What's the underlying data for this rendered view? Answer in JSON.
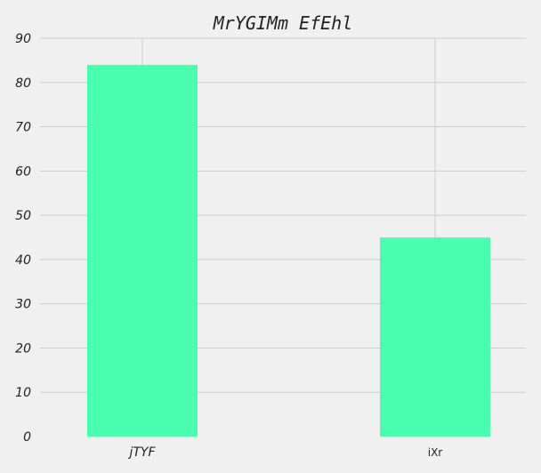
{
  "chart_data": {
    "type": "bar",
    "title": "MrYGIMm EfEhl",
    "xlabel": "",
    "ylabel": "",
    "categories": [
      "jTYF",
      "iXr"
    ],
    "values": [
      84,
      45
    ],
    "ylim": [
      0,
      90
    ],
    "yticks": [
      0,
      10,
      20,
      30,
      40,
      50,
      60,
      70,
      80,
      90
    ],
    "grid": true,
    "bar_color": "#48ffaf",
    "background_color": "#f0f0f0",
    "grid_color": "#cbcbcb"
  }
}
